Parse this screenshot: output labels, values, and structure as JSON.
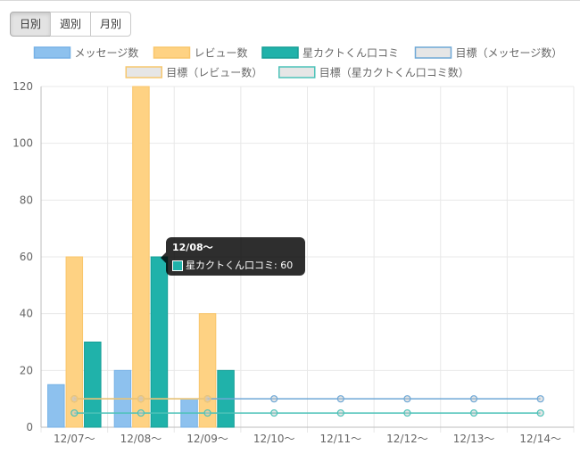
{
  "period_buttons": [
    {
      "label": "日別",
      "active": true
    },
    {
      "label": "週別",
      "active": false
    },
    {
      "label": "月別",
      "active": false
    }
  ],
  "tooltip": {
    "title": "12/08〜",
    "line": "星カクトくん口コミ: 60",
    "swatch_color": "#20b2aa"
  },
  "chart_data": {
    "type": "bar",
    "categories": [
      "12/07〜",
      "12/08〜",
      "12/09〜",
      "12/10〜",
      "12/11〜",
      "12/12〜",
      "12/13〜",
      "12/14〜"
    ],
    "ylim": [
      0,
      120
    ],
    "yticks": [
      0,
      20,
      40,
      60,
      80,
      100,
      120
    ],
    "grid": true,
    "legend_position": "top",
    "series": [
      {
        "name": "メッセージ数",
        "kind": "bar",
        "values": [
          15,
          20,
          10,
          0,
          0,
          0,
          0,
          0
        ],
        "fill": "#8dc1ee",
        "stroke": "#76b1e6"
      },
      {
        "name": "レビュー数",
        "kind": "bar",
        "values": [
          60,
          120,
          40,
          0,
          0,
          0,
          0,
          0
        ],
        "fill": "#fed283",
        "stroke": "#f9c66b"
      },
      {
        "name": "星カクトくん口コミ",
        "kind": "bar",
        "values": [
          30,
          60,
          20,
          0,
          0,
          0,
          0,
          0
        ],
        "fill": "#20b2aa",
        "stroke": "#159e96"
      },
      {
        "name": "目標（メッセージ数）",
        "kind": "line",
        "values": [
          10,
          10,
          10,
          10,
          10,
          10,
          10,
          10
        ],
        "fill": "#e6e6e6",
        "stroke": "#6fa8d6"
      },
      {
        "name": "目標（レビュー数）",
        "kind": "line",
        "values": [
          10,
          10,
          10,
          null,
          null,
          null,
          null,
          null
        ],
        "fill": "#e6e6e6",
        "stroke": "#f6c76f"
      },
      {
        "name": "目標（星カクトくん口コミ数）",
        "kind": "line",
        "values": [
          5,
          5,
          5,
          5,
          5,
          5,
          5,
          5
        ],
        "fill": "#e6e6e6",
        "stroke": "#4cc2b8"
      }
    ]
  }
}
